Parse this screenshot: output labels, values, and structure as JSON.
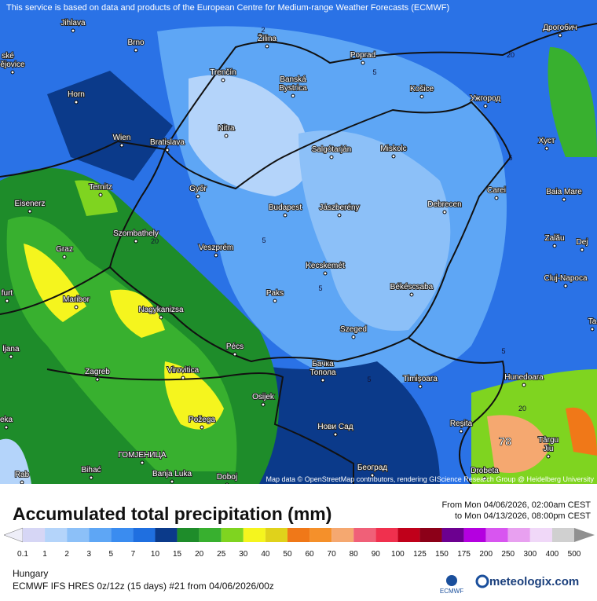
{
  "header_note": "This service is based on data and products of the European Centre for Medium-range Weather Forecasts (ECMWF)",
  "cities": [
    "Jihlava",
    "Brno",
    "Žilina",
    "Poprad",
    "Дрогобич",
    "Trenčín",
    "Banská",
    "Bystrica",
    "Košice",
    "Ужгород",
    "Horn",
    "Nitra",
    "Wien",
    "Bratislava",
    "Salgótarján",
    "Miskolc",
    "Хуст",
    "Győr",
    "Ternitz",
    "Carei",
    "Baia Mare",
    "Eisenerz",
    "Budapest",
    "Jászberény",
    "Debrecen",
    "Szombathely",
    "Zalău",
    "Graz",
    "Veszprém",
    "Dej",
    "Kecskemét",
    "Cluj-Napoca",
    "Maribor",
    "Paks",
    "Békéscsaba",
    "Nagykanizsa",
    "Szeged",
    "Zagreb",
    "Virovitica",
    "Pécs",
    "Бачка",
    "Топола",
    "Timișoara",
    "Hunedoara",
    "Osijek",
    "Požega",
    "Нови Сад",
    "Reșita",
    "Târgu",
    "Jiu",
    "Bihać",
    "ГОМЈЕНИЦА",
    "Banja Luka",
    "Doboj",
    "Београд",
    "Drobeta",
    "ské",
    "ějovice",
    "furt",
    "ljana",
    "eka",
    "Rab",
    "Ta"
  ],
  "contour_labels": [
    "2",
    "20",
    "5",
    "5",
    "20",
    "5",
    "5",
    "5",
    "5",
    "20",
    "78"
  ],
  "attribution": "Map data © OpenStreetMap contributors, rendering GIScience Research Group @ Heidelberg University",
  "title": "Accumulated total precipitation (mm)",
  "period_from": "From Mon 04/06/2026, 02:00am CEST",
  "period_to": "to Mon 04/13/2026, 08:00pm CEST",
  "legend": {
    "values": [
      0.1,
      1,
      2,
      3,
      5,
      7,
      10,
      15,
      20,
      25,
      30,
      40,
      50,
      60,
      70,
      80,
      90,
      100,
      125,
      150,
      175,
      200,
      250,
      300,
      400,
      500
    ],
    "colors": [
      "#eeeef8",
      "#d6d6f5",
      "#b4d4fa",
      "#8cc0f8",
      "#5ea6f5",
      "#3a8cf0",
      "#1f6fe0",
      "#0b3a8a",
      "#1e8c2a",
      "#38b02f",
      "#7fd420",
      "#f5f51e",
      "#e0d21b",
      "#f07818",
      "#f5902a",
      "#f5a870",
      "#f06078",
      "#f0304e",
      "#c0001a",
      "#8c0018",
      "#6c0090",
      "#b400e0",
      "#d855f0",
      "#e8a0f0",
      "#f0d8f8",
      "#d0d0d0",
      "#909090"
    ]
  },
  "region": "Hungary",
  "model_run": "ECMWF IFS HRES 0z/12z (15 days) #21 from  04/06/2026/00z",
  "logo_small": "ECMWF",
  "logo": "meteologix.com"
}
